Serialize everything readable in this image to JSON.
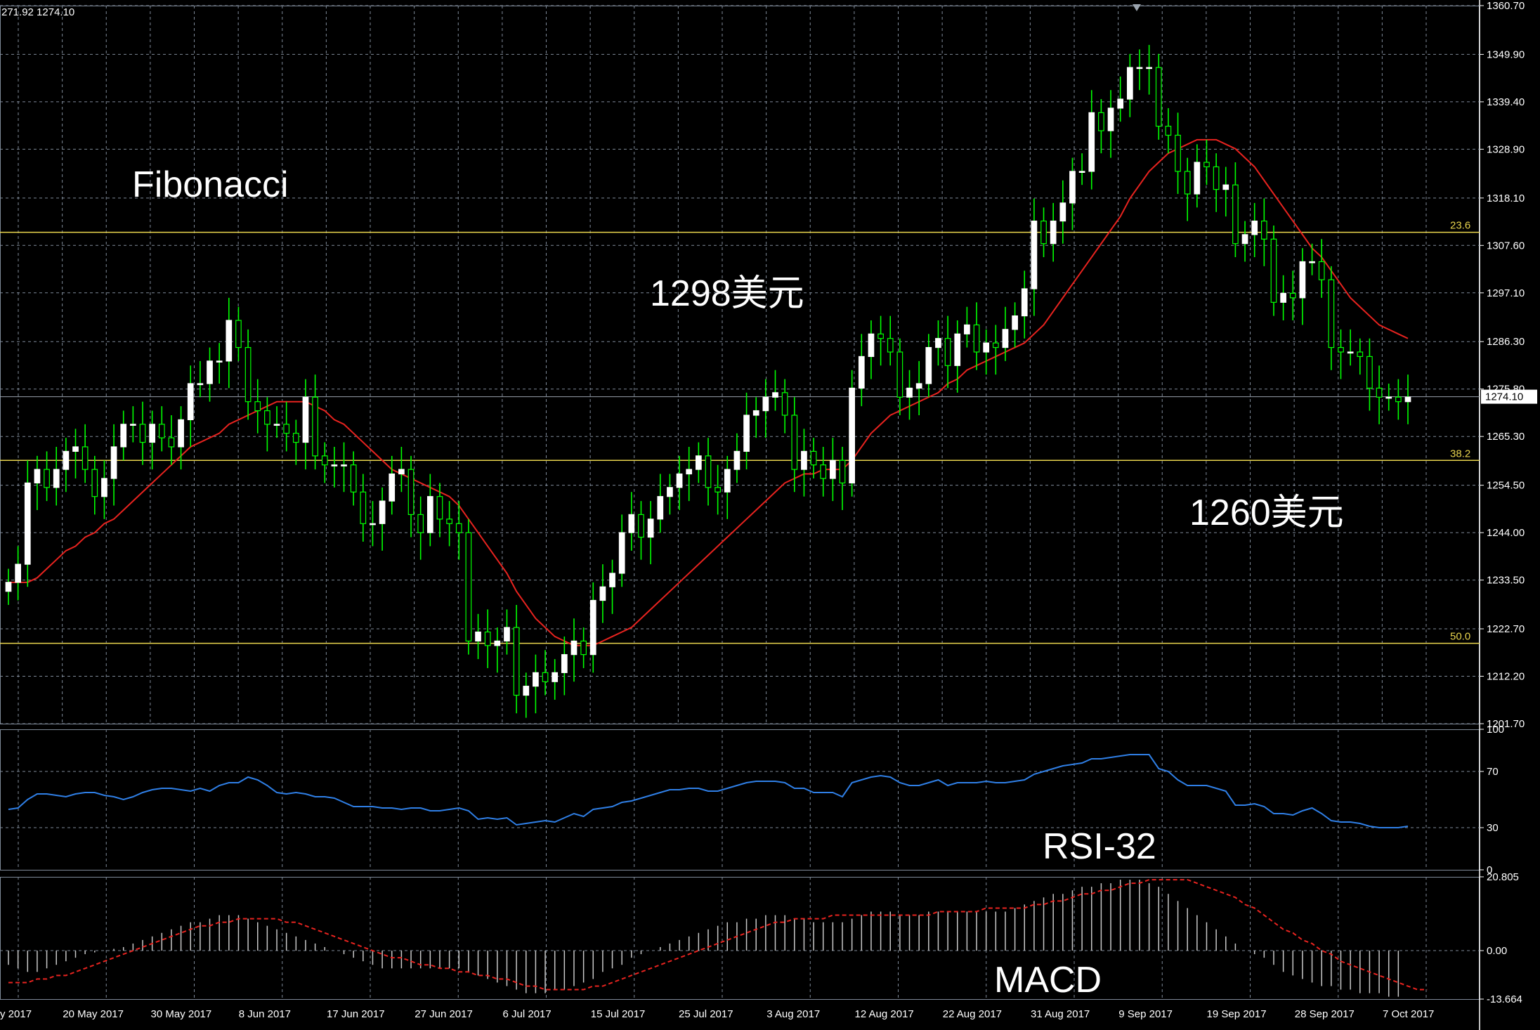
{
  "ohlc_label": "271.92 1274.10",
  "labels": {
    "fibonacci": "Fibonacci",
    "level_1298": "1298美元",
    "level_1260": "1260美元",
    "rsi": "RSI-32",
    "macd": "MACD"
  },
  "colors": {
    "background": "#000000",
    "grid": "#7f8a99",
    "bull_candle": "#ffffff",
    "wick": "#00ff00",
    "moving_average": "#e8231f",
    "fib_line": "#e8d44d",
    "rsi_line": "#2f7fe6",
    "macd_hist": "#c8c8c8",
    "macd_signal": "#e8231f",
    "axis_text": "#ffffff"
  },
  "chart_data": [
    {
      "type": "candlestick",
      "panel": "main",
      "y_ticks": [
        "1360.70",
        "1349.90",
        "1339.40",
        "1328.90",
        "1318.10",
        "1307.60",
        "1297.10",
        "1286.30",
        "1275.80",
        "1265.30",
        "1254.50",
        "1244.00",
        "1233.50",
        "1222.70",
        "1212.20",
        "1201.70"
      ],
      "ylim": [
        1201.7,
        1360.7
      ],
      "x_tick_labels": [
        "y 2017",
        "20 May 2017",
        "30 May 2017",
        "8 Jun 2017",
        "17 Jun 2017",
        "27 Jun 2017",
        "6 Jul 2017",
        "15 Jul 2017",
        "25 Jul 2017",
        "3 Aug 2017",
        "12 Aug 2017",
        "22 Aug 2017",
        "31 Aug 2017",
        "9 Sep 2017",
        "19 Sep 2017",
        "28 Sep 2017",
        "7 Oct 2017"
      ],
      "current_price": "1274.10",
      "fib_levels": [
        {
          "label": "23.6",
          "value": 1310.5
        },
        {
          "label": "38.2",
          "value": 1260.0
        },
        {
          "label": "50.0",
          "value": 1219.5
        }
      ],
      "closes": [
        1233,
        1237,
        1255,
        1258,
        1254,
        1258,
        1262,
        1263,
        1258,
        1252,
        1256,
        1263,
        1268,
        1268,
        1264,
        1268,
        1265,
        1263,
        1269,
        1277,
        1277,
        1282,
        1282,
        1291,
        1285,
        1273,
        1271,
        1268,
        1268,
        1266,
        1264,
        1274,
        1261,
        1259,
        1259,
        1259,
        1253,
        1246,
        1246,
        1251,
        1257,
        1258,
        1248,
        1244,
        1252,
        1247,
        1246,
        1244,
        1220,
        1222,
        1219,
        1220,
        1223,
        1208,
        1210,
        1213,
        1211,
        1213,
        1217,
        1220,
        1217,
        1229,
        1232,
        1235,
        1244,
        1248,
        1243,
        1247,
        1252,
        1254,
        1257,
        1258,
        1261,
        1254,
        1253,
        1258,
        1262,
        1270,
        1271,
        1274,
        1275,
        1270,
        1258,
        1262,
        1259,
        1256,
        1260,
        1255,
        1276,
        1283,
        1288,
        1287,
        1284,
        1274,
        1276,
        1277,
        1285,
        1287,
        1281,
        1288,
        1290,
        1284,
        1286,
        1285,
        1289,
        1292,
        1298,
        1313,
        1308,
        1313,
        1317,
        1324,
        1324,
        1337,
        1333,
        1338,
        1340,
        1347,
        1347,
        1347,
        1334,
        1332,
        1324,
        1319,
        1326,
        1325,
        1320,
        1321,
        1308,
        1310,
        1313,
        1309,
        1295,
        1297,
        1296,
        1304,
        1304,
        1300,
        1285,
        1284,
        1284,
        1283,
        1276,
        1274,
        1274,
        1273,
        1274
      ],
      "ma": [
        1233,
        1233,
        1233,
        1234,
        1236,
        1238,
        1240,
        1241,
        1243,
        1244,
        1246,
        1247,
        1249,
        1251,
        1253,
        1255,
        1257,
        1259,
        1261,
        1263,
        1264,
        1265,
        1266,
        1268,
        1269,
        1270,
        1271,
        1272,
        1273,
        1273,
        1273,
        1273,
        1272,
        1271,
        1269,
        1268,
        1266,
        1264,
        1262,
        1260,
        1258,
        1257,
        1256,
        1255,
        1254,
        1253,
        1252,
        1250,
        1247,
        1244,
        1241,
        1238,
        1235,
        1231,
        1228,
        1225,
        1223,
        1221,
        1220,
        1219,
        1219,
        1219,
        1220,
        1221,
        1222,
        1223,
        1225,
        1227,
        1229,
        1231,
        1233,
        1235,
        1237,
        1239,
        1241,
        1243,
        1245,
        1247,
        1249,
        1251,
        1253,
        1255,
        1256,
        1257,
        1257,
        1258,
        1258,
        1258,
        1260,
        1263,
        1266,
        1268,
        1270,
        1271,
        1272,
        1273,
        1274,
        1275,
        1277,
        1278,
        1280,
        1281,
        1282,
        1283,
        1284,
        1285,
        1286,
        1288,
        1290,
        1293,
        1296,
        1299,
        1302,
        1305,
        1308,
        1311,
        1314,
        1318,
        1321,
        1324,
        1326,
        1328,
        1329,
        1330,
        1331,
        1331,
        1331,
        1330,
        1329,
        1327,
        1325,
        1322,
        1319,
        1316,
        1313,
        1310,
        1307,
        1305,
        1302,
        1299,
        1296,
        1294,
        1292,
        1290,
        1289,
        1288,
        1287
      ]
    },
    {
      "type": "line",
      "panel": "rsi",
      "name": "RSI-32",
      "y_ticks": [
        "100",
        "70",
        "30",
        "0"
      ],
      "ylim": [
        0,
        100
      ],
      "levels": [
        70,
        30
      ],
      "values": [
        43,
        44,
        50,
        54,
        54,
        53,
        52,
        54,
        55,
        55,
        53,
        52,
        50,
        52,
        55,
        57,
        58,
        58,
        57,
        56,
        58,
        56,
        60,
        62,
        62,
        66,
        64,
        60,
        55,
        54,
        55,
        54,
        52,
        52,
        51,
        48,
        45,
        45,
        45,
        44,
        44,
        43,
        44,
        44,
        42,
        42,
        43,
        44,
        42,
        36,
        37,
        36,
        37,
        32,
        33,
        34,
        35,
        34,
        37,
        40,
        38,
        43,
        44,
        45,
        48,
        49,
        51,
        53,
        55,
        57,
        57,
        58,
        58,
        56,
        56,
        58,
        60,
        62,
        63,
        63,
        63,
        62,
        58,
        58,
        55,
        55,
        55,
        52,
        62,
        64,
        66,
        67,
        66,
        62,
        60,
        60,
        62,
        64,
        60,
        62,
        62,
        62,
        63,
        62,
        62,
        63,
        64,
        68,
        70,
        72,
        74,
        75,
        76,
        79,
        79,
        80,
        81,
        82,
        82,
        82,
        72,
        70,
        64,
        60,
        60,
        60,
        58,
        56,
        46,
        46,
        47,
        45,
        40,
        40,
        39,
        42,
        44,
        40,
        35,
        34,
        34,
        33,
        31,
        30,
        30,
        30,
        31
      ]
    },
    {
      "type": "bar_line",
      "panel": "macd",
      "name": "MACD",
      "y_ticks": [
        "20.805",
        "0.00",
        "-13.664"
      ],
      "ylim": [
        -13.664,
        20.805
      ],
      "histogram": [
        -4,
        -5,
        -6,
        -6,
        -5,
        -4,
        -3,
        -2,
        -1,
        -0.5,
        0,
        0.5,
        1,
        2,
        3,
        4,
        5,
        6,
        7,
        8,
        8,
        9,
        10,
        10,
        10,
        9,
        8,
        7,
        6,
        5,
        4,
        3,
        2,
        1,
        0,
        -1,
        -2,
        -3,
        -4,
        -5,
        -5,
        -5,
        -5,
        -5,
        -5,
        -5,
        -5,
        -5,
        -6,
        -7,
        -8,
        -9,
        -10,
        -11,
        -12,
        -12,
        -12,
        -11,
        -11,
        -10,
        -9,
        -8,
        -6,
        -5,
        -4,
        -2,
        -1,
        0,
        1,
        2,
        3,
        4,
        5,
        6,
        7,
        8,
        8,
        9,
        9,
        10,
        10,
        10,
        9,
        9,
        8,
        8,
        8,
        8,
        9,
        10,
        11,
        11,
        11,
        10,
        10,
        10,
        11,
        11,
        11,
        11,
        11,
        11,
        11,
        11,
        11,
        12,
        13,
        14,
        15,
        16,
        16,
        17,
        18,
        18,
        19,
        19,
        20,
        20,
        20,
        19,
        18,
        16,
        14,
        12,
        10,
        8,
        6,
        4,
        2,
        0,
        -1,
        -2,
        -4,
        -6,
        -7,
        -8,
        -9,
        -10,
        -10,
        -11,
        -11,
        -12,
        -12,
        -12,
        -13,
        -13
      ],
      "signal": [
        -9,
        -9,
        -9,
        -8,
        -8,
        -7,
        -7,
        -6,
        -5,
        -4,
        -3,
        -2,
        -1,
        0,
        1,
        2,
        3,
        4,
        5,
        6,
        7,
        7,
        8,
        8,
        9,
        9,
        9,
        9,
        9,
        8,
        8,
        7,
        6,
        5,
        4,
        3,
        2,
        1,
        0,
        -1,
        -2,
        -2,
        -3,
        -4,
        -4,
        -5,
        -5,
        -6,
        -6,
        -7,
        -7,
        -8,
        -8,
        -9,
        -10,
        -10,
        -11,
        -11,
        -11,
        -11,
        -11,
        -10,
        -10,
        -9,
        -8,
        -7,
        -6,
        -5,
        -4,
        -3,
        -2,
        -1,
        0,
        1,
        2,
        3,
        4,
        5,
        6,
        7,
        8,
        8,
        9,
        9,
        9,
        9,
        10,
        10,
        10,
        10,
        10,
        10,
        10,
        10,
        10,
        10,
        10,
        11,
        11,
        11,
        11,
        11,
        12,
        12,
        12,
        12,
        12,
        13,
        13,
        14,
        14,
        15,
        16,
        16,
        17,
        17,
        18,
        19,
        19,
        20,
        20,
        20,
        20,
        20,
        19,
        18,
        17,
        16,
        15,
        13,
        12,
        10,
        8,
        6,
        5,
        3,
        2,
        0,
        -1,
        -3,
        -4,
        -5,
        -6,
        -7,
        -8,
        -9,
        -10,
        -11,
        -11
      ]
    }
  ]
}
